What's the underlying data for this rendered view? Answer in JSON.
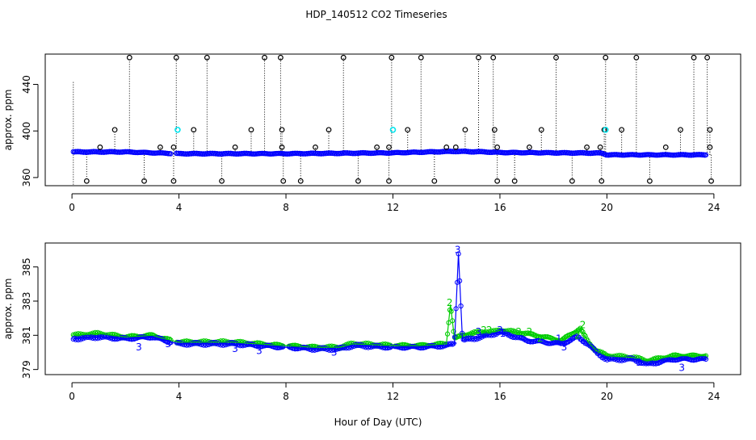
{
  "title": "HDP_140512  CO2 Timeseries",
  "xlabel": "Hour of Day (UTC)",
  "chart_data": [
    {
      "type": "scatter",
      "ylabel": "approx. ppm",
      "xlim": [
        -1,
        25
      ],
      "ylim": [
        353,
        466
      ],
      "xticks": [
        0,
        4,
        8,
        12,
        16,
        20,
        24
      ],
      "yticks": [
        360,
        400,
        440
      ],
      "colors": {
        "main": "#0000ff",
        "outlier": "#000000",
        "flag": "#00e5ee",
        "line": "#000000"
      },
      "baseline": {
        "name": "main",
        "x_start": 0.05,
        "x_end": 23.7,
        "points": [
          [
            0.05,
            382
          ],
          [
            2,
            382
          ],
          [
            4,
            380.5
          ],
          [
            8,
            380.5
          ],
          [
            12,
            381.2
          ],
          [
            14.3,
            382.5
          ],
          [
            15.5,
            382
          ],
          [
            16,
            381.5
          ],
          [
            19.8,
            381
          ],
          [
            20,
            379.5
          ],
          [
            23.7,
            379.5
          ]
        ]
      },
      "outliers_high": [
        2.15,
        3.9,
        5.05,
        7.2,
        7.8,
        10.15,
        11.95,
        13.05,
        15.2,
        15.75,
        18.1,
        19.95,
        21.1,
        23.25,
        23.75
      ],
      "outliers_low": [
        0.55,
        2.7,
        3.8,
        5.6,
        7.9,
        8.55,
        10.7,
        11.85,
        13.55,
        15.9,
        16.55,
        18.7,
        19.8,
        21.6,
        23.9
      ],
      "outliers_mid400": [
        1.6,
        4.55,
        6.7,
        7.85,
        9.6,
        12.55,
        14.7,
        15.8,
        17.55,
        19.9,
        20.55,
        22.75,
        23.85
      ],
      "outliers_mid386": [
        1.05,
        3.3,
        3.8,
        6.1,
        7.85,
        9.1,
        11.4,
        11.85,
        14.0,
        14.35,
        15.9,
        17.1,
        19.25,
        19.75,
        22.2,
        23.85
      ],
      "flagged": [
        [
          3.95,
          401
        ],
        [
          12.0,
          401
        ],
        [
          19.95,
          401
        ]
      ],
      "high_value": 463,
      "low_value": 357,
      "mid400_value": 401,
      "mid386_value": 386
    },
    {
      "type": "line",
      "ylabel": "approx. ppm",
      "xlim": [
        -1,
        25
      ],
      "ylim": [
        378.7,
        386.4
      ],
      "xticks": [
        0,
        4,
        8,
        12,
        16,
        20,
        24
      ],
      "yticks": [
        379,
        381,
        383,
        385
      ],
      "colors": {
        "blue": "#0000ff",
        "green": "#00cc00"
      },
      "series": [
        {
          "symbol": "1",
          "points": [
            [
              0.05,
              380.8
            ],
            [
              1,
              380.9
            ],
            [
              2,
              380.8
            ],
            [
              3,
              380.9
            ],
            [
              3.7,
              380.6
            ],
            [
              4,
              380.5
            ],
            [
              6,
              380.5
            ],
            [
              7.9,
              380.3
            ],
            [
              8,
              380.3
            ],
            [
              9,
              380.2
            ],
            [
              10,
              380.2
            ],
            [
              10.5,
              380.4
            ],
            [
              12,
              380.3
            ],
            [
              13,
              380.3
            ],
            [
              14,
              380.4
            ],
            [
              14.3,
              380.5
            ],
            [
              14.45,
              385.8
            ],
            [
              14.6,
              380.7
            ],
            [
              15.3,
              380.9
            ],
            [
              15.8,
              381.1
            ],
            [
              16,
              381.2
            ],
            [
              17,
              380.7
            ],
            [
              18.3,
              380.5
            ],
            [
              18.9,
              380.9
            ],
            [
              19.3,
              380.5
            ],
            [
              19.6,
              380
            ],
            [
              20,
              379.6
            ],
            [
              21,
              379.6
            ],
            [
              21.5,
              379.3
            ],
            [
              22.5,
              379.6
            ],
            [
              23.7,
              379.6
            ]
          ]
        },
        {
          "symbol": "2",
          "points": [
            [
              0.05,
              381
            ],
            [
              1,
              381.1
            ],
            [
              2,
              380.9
            ],
            [
              3,
              381.0
            ],
            [
              3.7,
              380.7
            ],
            [
              4,
              380.6
            ],
            [
              6,
              380.6
            ],
            [
              7.9,
              380.4
            ],
            [
              8,
              380.4
            ],
            [
              9,
              380.3
            ],
            [
              10,
              380.3
            ],
            [
              10.5,
              380.5
            ],
            [
              12,
              380.4
            ],
            [
              13,
              380.4
            ],
            [
              14,
              380.5
            ],
            [
              14.15,
              382.8
            ],
            [
              14.3,
              380.8
            ],
            [
              14.6,
              381
            ],
            [
              15.3,
              381.2
            ],
            [
              15.8,
              381.2
            ],
            [
              16,
              381.3
            ],
            [
              17,
              381.1
            ],
            [
              18.3,
              380.7
            ],
            [
              19.0,
              381.4
            ],
            [
              19.3,
              380.6
            ],
            [
              19.6,
              380.1
            ],
            [
              20,
              379.8
            ],
            [
              21,
              379.7
            ],
            [
              21.5,
              379.5
            ],
            [
              22.5,
              379.8
            ],
            [
              23.7,
              379.8
            ]
          ]
        }
      ],
      "labels3": [
        [
          2.5,
          380.3
        ],
        [
          3.6,
          380.5
        ],
        [
          6.1,
          380.2
        ],
        [
          7.0,
          380.1
        ],
        [
          9.8,
          380.0
        ],
        [
          14.42,
          386.0
        ],
        [
          15.2,
          381.2
        ],
        [
          16.0,
          381.3
        ],
        [
          18.4,
          380.3
        ],
        [
          21.2,
          379.4
        ],
        [
          22.8,
          379.1
        ]
      ],
      "labels2": [
        [
          14.12,
          382.9
        ],
        [
          15.4,
          381.3
        ],
        [
          15.6,
          381.3
        ],
        [
          16.7,
          381.2
        ],
        [
          17.1,
          381.2
        ],
        [
          19.1,
          381.6
        ],
        [
          18.9,
          381.0
        ],
        [
          17.5,
          380.8
        ]
      ],
      "labels1": [
        [
          14.3,
          380.7
        ],
        [
          16.1,
          381.1
        ],
        [
          18.2,
          380.8
        ]
      ]
    }
  ]
}
